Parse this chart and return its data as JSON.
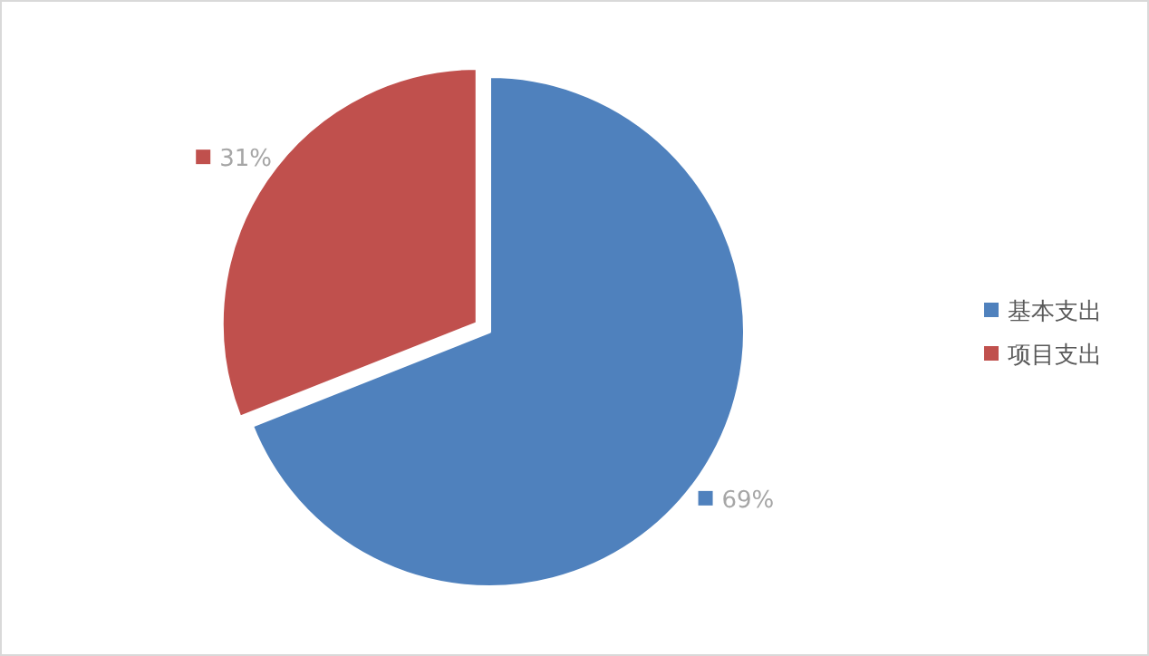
{
  "chart_data": {
    "type": "pie",
    "categories": [
      "基本支出",
      "项目支出"
    ],
    "values": [
      69,
      31
    ],
    "colors": [
      "#4f81bd",
      "#c0504d"
    ],
    "value_labels": [
      "69%",
      "31%"
    ],
    "legend": "right"
  }
}
